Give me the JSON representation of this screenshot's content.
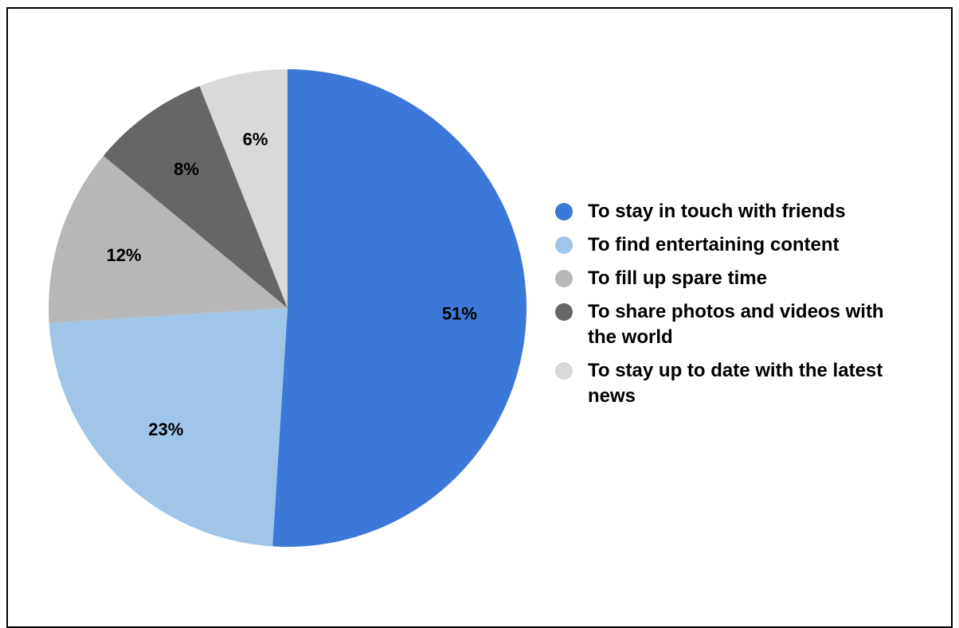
{
  "chart_data": {
    "type": "pie",
    "title": "",
    "legend_position": "right",
    "slices": [
      {
        "label": "To stay in touch with friends",
        "value": 51,
        "display": "51%",
        "color": "#3C78D8"
      },
      {
        "label": "To find entertaining content",
        "value": 23,
        "display": "23%",
        "color": "#9FC5E8"
      },
      {
        "label": "To fill up spare time",
        "value": 12,
        "display": "12%",
        "color": "#B7B7B7"
      },
      {
        "label": "To share photos and videos with the world",
        "value": 8,
        "display": "8%",
        "color": "#666666"
      },
      {
        "label": "To stay up to date with the latest news",
        "value": 6,
        "display": "6%",
        "color": "#D9D9D9"
      }
    ]
  }
}
